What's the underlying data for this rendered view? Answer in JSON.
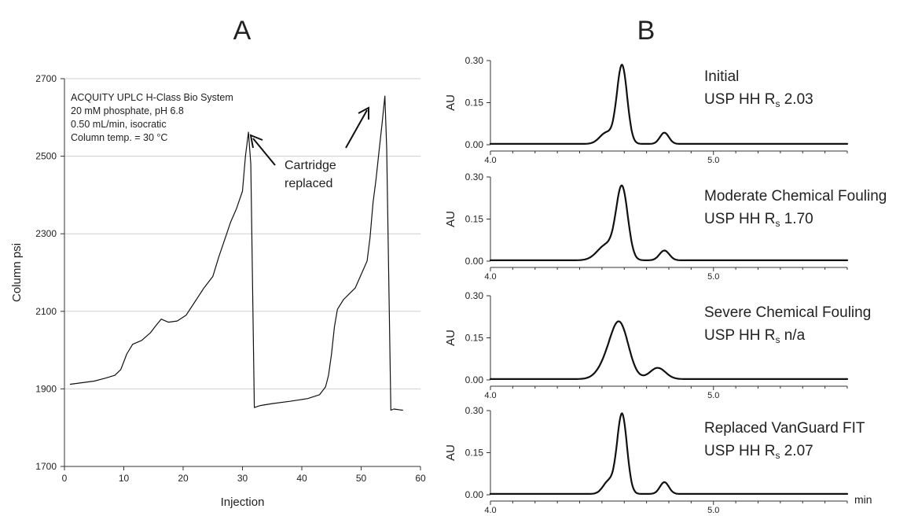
{
  "panel_letters": [
    "A",
    "B"
  ],
  "chart_data": [
    {
      "type": "line",
      "panel": "A",
      "xlabel": "Injection",
      "ylabel": "Column psi",
      "xlim": [
        0,
        60
      ],
      "ylim": [
        1700,
        2700
      ],
      "xticks": [
        0,
        10,
        20,
        30,
        40,
        50,
        60
      ],
      "yticks": [
        1700,
        1900,
        2100,
        2300,
        2500,
        2700
      ],
      "grid": "horizontal",
      "info_lines": [
        "ACQUITY UPLC H-Class Bio System",
        "20 mM phosphate, pH 6.8",
        "0.50 mL/min, isocratic",
        "Column temp. = 30 °C"
      ],
      "annotation": {
        "lines": [
          "Cartridge",
          "replaced"
        ],
        "points_to_x": [
          31,
          54
        ]
      },
      "series": [
        {
          "x": [
            1,
            3,
            5,
            7,
            8.5,
            9.5,
            10.5,
            11.5,
            13,
            14.5,
            15.5,
            16.3,
            17.5,
            19,
            20.5,
            22,
            23.5,
            25,
            26,
            27,
            28,
            29,
            30,
            30.5,
            31,
            31.4,
            32,
            33,
            35,
            38,
            41,
            43,
            44,
            44.5,
            45,
            45.5,
            46,
            47,
            48,
            49,
            50,
            51,
            51.5,
            52,
            52.5,
            53,
            53.5,
            54,
            54.3,
            55,
            55.5,
            56,
            57
          ],
          "y": [
            1912,
            1916,
            1920,
            1928,
            1935,
            1950,
            1990,
            2015,
            2025,
            2045,
            2065,
            2080,
            2072,
            2075,
            2090,
            2125,
            2160,
            2190,
            2240,
            2285,
            2330,
            2365,
            2410,
            2500,
            2562,
            2480,
            1852,
            1857,
            1862,
            1868,
            1875,
            1885,
            1905,
            1935,
            1990,
            2060,
            2105,
            2130,
            2145,
            2160,
            2195,
            2230,
            2290,
            2380,
            2440,
            2510,
            2580,
            2655,
            2520,
            1845,
            1848,
            1847,
            1845
          ]
        }
      ]
    },
    {
      "type": "line",
      "panel": "B",
      "ylabel": "AU",
      "xunit": "min",
      "xlim": [
        4.0,
        5.6
      ],
      "ylim": [
        0,
        0.3
      ],
      "xtick_labels": [
        "4.0",
        "5.0"
      ],
      "ytick_labels": [
        "0.30",
        "0.15",
        "0.00"
      ],
      "traces": [
        {
          "name": "Initial",
          "rs_value": "2.03",
          "peaks": [
            {
              "c": 4.52,
              "h": 0.04,
              "w": 0.03
            },
            {
              "c": 4.59,
              "h": 0.28,
              "w": 0.023
            },
            {
              "c": 4.78,
              "h": 0.04,
              "w": 0.02
            }
          ]
        },
        {
          "name": "Moderate Chemical Fouling",
          "rs_value": "1.70",
          "peaks": [
            {
              "c": 4.52,
              "h": 0.055,
              "w": 0.04
            },
            {
              "c": 4.59,
              "h": 0.255,
              "w": 0.026
            },
            {
              "c": 4.78,
              "h": 0.035,
              "w": 0.022
            }
          ]
        },
        {
          "name": "Severe Chemical Fouling",
          "rs_value": "n/a",
          "peaks": [
            {
              "c": 4.52,
              "h": 0.045,
              "w": 0.04
            },
            {
              "c": 4.58,
              "h": 0.19,
              "w": 0.04
            },
            {
              "c": 4.75,
              "h": 0.04,
              "w": 0.035
            }
          ]
        },
        {
          "name": "Replaced VanGuard FIT",
          "rs_value": "2.07",
          "peaks": [
            {
              "c": 4.53,
              "h": 0.045,
              "w": 0.025
            },
            {
              "c": 4.59,
              "h": 0.285,
              "w": 0.022
            },
            {
              "c": 4.78,
              "h": 0.042,
              "w": 0.02
            }
          ]
        }
      ],
      "rs_label": {
        "prefix": "USP HH R",
        "sub": "s"
      }
    }
  ]
}
